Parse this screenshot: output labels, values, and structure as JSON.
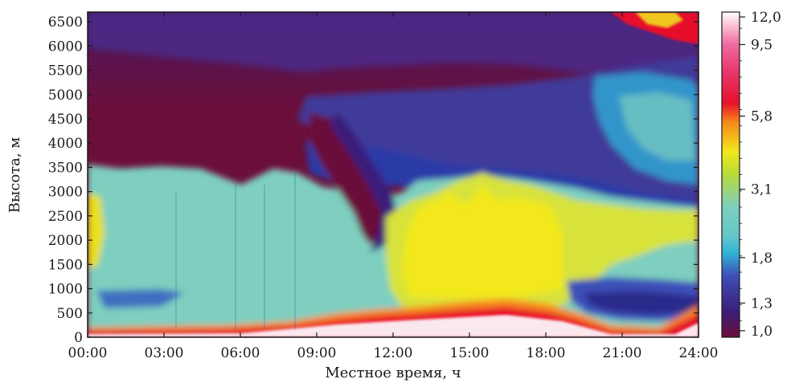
{
  "chart_data": {
    "type": "heatmap",
    "title": "",
    "xlabel": "Местное время, ч",
    "ylabel": "Высота, м",
    "x_ticks": [
      "00:00",
      "03:00",
      "06:00",
      "09:00",
      "12:00",
      "15:00",
      "18:00",
      "21:00",
      "24:00"
    ],
    "x_range_hours": [
      0,
      24
    ],
    "y_ticks": [
      0,
      500,
      1000,
      1500,
      2000,
      2500,
      3000,
      3500,
      4000,
      4500,
      5000,
      5500,
      6000,
      6500
    ],
    "ylim": [
      0,
      6700
    ],
    "colorbar": {
      "tick_labels": [
        "12,0",
        "9,5",
        "5,8",
        "3,1",
        "1,8",
        "1,3",
        "1,0"
      ],
      "tick_values": [
        12.0,
        9.5,
        5.8,
        3.1,
        1.8,
        1.3,
        1.0
      ],
      "scale": "nonlinear",
      "colors": [
        "#6b0f3a",
        "#3a1f7a",
        "#3e4fb8",
        "#2fb5d6",
        "#7ecfbf",
        "#b6dc3a",
        "#f2e81a",
        "#f78a1a",
        "#e8102a",
        "#f06aa0",
        "#fbd2df",
        "#ffffff"
      ]
    },
    "regions": [
      {
        "feature": "boundary layer top",
        "hours": [
          0,
          1,
          2,
          3,
          4,
          5,
          6,
          7,
          8,
          9,
          10,
          11,
          12,
          13,
          14,
          15,
          16,
          17,
          18,
          19,
          20,
          21,
          22,
          23,
          24
        ],
        "height_m": [
          3600,
          3450,
          3400,
          3350,
          3300,
          3300,
          3250,
          3350,
          3500,
          3450,
          3300,
          3900,
          3300,
          3250,
          3300,
          3150,
          3050,
          3000,
          2950,
          2900,
          2850,
          2850,
          2800,
          2800,
          2750
        ]
      },
      {
        "feature": "surface layer top",
        "hours": [
          0,
          2,
          4,
          6,
          8,
          9,
          10,
          11,
          12,
          13,
          14,
          15,
          16,
          17,
          18,
          19,
          20,
          21,
          22,
          23,
          24
        ],
        "height_m": [
          150,
          120,
          150,
          100,
          110,
          200,
          250,
          300,
          420,
          380,
          450,
          550,
          600,
          650,
          650,
          550,
          350,
          150,
          80,
          150,
          600
        ]
      }
    ]
  }
}
